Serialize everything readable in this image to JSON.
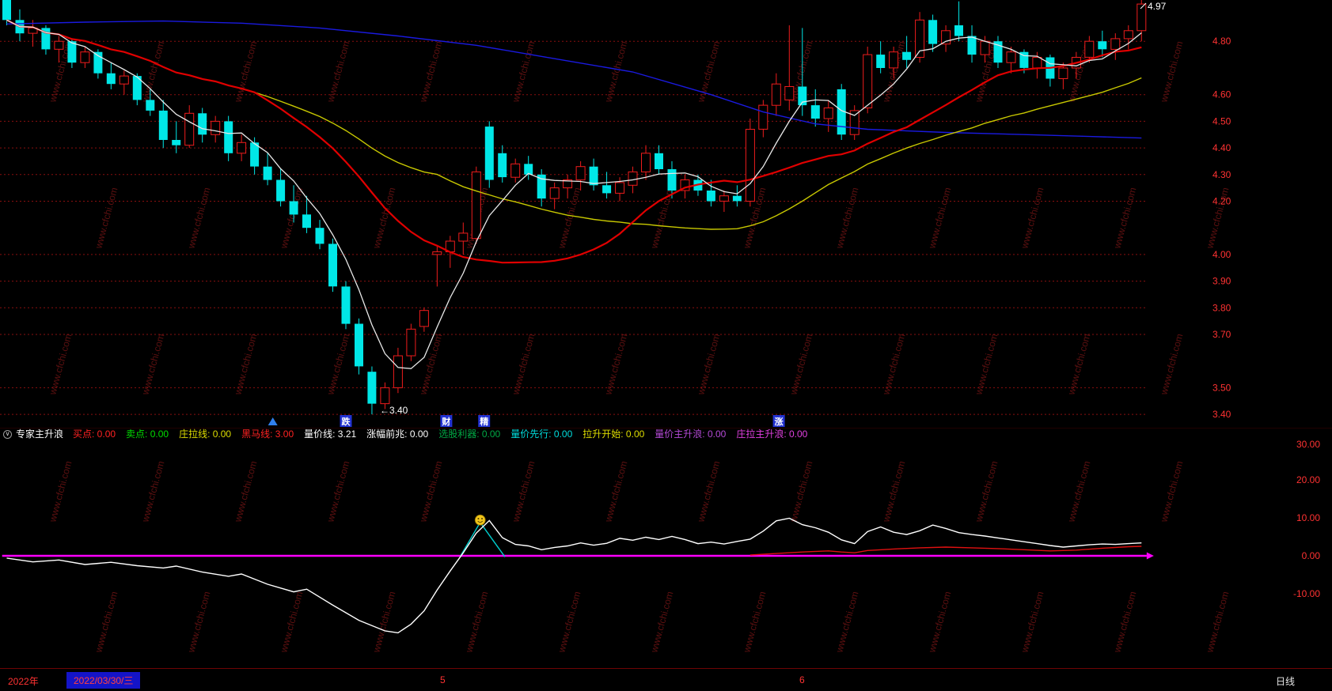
{
  "app": {
    "watermark": "www.cfchi.com"
  },
  "indicator_header": {
    "icon_glyph": "∨",
    "title": "专家主升浪",
    "items": [
      {
        "label": "买点",
        "value": "0.00",
        "color": "#ff2222"
      },
      {
        "label": "卖点",
        "value": "0.00",
        "color": "#00dd00"
      },
      {
        "label": "庄拉线",
        "value": "0.00",
        "color": "#dddd00"
      },
      {
        "label": "黑马线",
        "value": "3.00",
        "color": "#ff2222"
      },
      {
        "label": "量价线",
        "value": "3.21",
        "color": "#ffffff"
      },
      {
        "label": "涨幅前兆",
        "value": "0.00",
        "color": "#ffffff"
      },
      {
        "label": "选股利器",
        "value": "0.00",
        "color": "#00a844"
      },
      {
        "label": "量价先行",
        "value": "0.00",
        "color": "#00dddd"
      },
      {
        "label": "拉升开始",
        "value": "0.00",
        "color": "#dddd00"
      },
      {
        "label": "量价主升浪",
        "value": "0.00",
        "color": "#b44ad6"
      },
      {
        "label": "庄拉主升浪",
        "value": "0.00",
        "color": "#e040e0"
      }
    ]
  },
  "status_bar": {
    "year": "2022年",
    "date": "2022/03/30/三",
    "month_ticks": [
      {
        "label": "5",
        "x": 556
      },
      {
        "label": "6",
        "x": 1010
      }
    ],
    "period": "日线"
  },
  "chart_data": [
    {
      "type": "candlestick",
      "title": "daily-price-chart",
      "y_range": [
        3.35,
        4.955
      ],
      "price_axis_labels": [
        4.8,
        4.6,
        4.5,
        4.4,
        4.3,
        4.2,
        4.0,
        3.9,
        3.8,
        3.7,
        3.5,
        3.4
      ],
      "last_price_label": "4.97",
      "low_annotation": "←3.40",
      "colors": {
        "up": "#ee1c1c",
        "down": "#00e7e7"
      },
      "candles": [
        [
          4.96,
          4.97,
          4.86,
          4.88
        ],
        [
          4.88,
          4.92,
          4.8,
          4.83
        ],
        [
          4.83,
          4.88,
          4.78,
          4.85
        ],
        [
          4.85,
          4.86,
          4.75,
          4.77
        ],
        [
          4.77,
          4.82,
          4.72,
          4.8
        ],
        [
          4.8,
          4.81,
          4.7,
          4.72
        ],
        [
          4.72,
          4.78,
          4.7,
          4.76
        ],
        [
          4.76,
          4.77,
          4.66,
          4.68
        ],
        [
          4.68,
          4.72,
          4.62,
          4.64
        ],
        [
          4.64,
          4.69,
          4.6,
          4.67
        ],
        [
          4.67,
          4.68,
          4.56,
          4.58
        ],
        [
          4.58,
          4.62,
          4.52,
          4.54
        ],
        [
          4.54,
          4.58,
          4.4,
          4.43
        ],
        [
          4.43,
          4.5,
          4.38,
          4.41
        ],
        [
          4.41,
          4.56,
          4.4,
          4.53
        ],
        [
          4.53,
          4.55,
          4.42,
          4.45
        ],
        [
          4.45,
          4.52,
          4.42,
          4.5
        ],
        [
          4.5,
          4.52,
          4.35,
          4.38
        ],
        [
          4.38,
          4.45,
          4.35,
          4.42
        ],
        [
          4.42,
          4.44,
          4.3,
          4.33
        ],
        [
          4.33,
          4.38,
          4.26,
          4.28
        ],
        [
          4.28,
          4.32,
          4.18,
          4.2
        ],
        [
          4.2,
          4.26,
          4.12,
          4.15
        ],
        [
          4.15,
          4.22,
          4.08,
          4.1
        ],
        [
          4.1,
          4.13,
          4.02,
          4.04
        ],
        [
          4.04,
          4.06,
          3.86,
          3.88
        ],
        [
          3.88,
          3.9,
          3.72,
          3.74
        ],
        [
          3.74,
          3.76,
          3.55,
          3.58
        ],
        [
          3.56,
          3.58,
          3.4,
          3.44
        ],
        [
          3.44,
          3.52,
          3.42,
          3.5
        ],
        [
          3.5,
          3.65,
          3.48,
          3.62
        ],
        [
          3.62,
          3.74,
          3.6,
          3.72
        ],
        [
          3.73,
          3.8,
          3.71,
          3.79
        ],
        [
          4.0,
          4.03,
          3.88,
          4.01
        ],
        [
          4.01,
          4.07,
          3.95,
          4.05
        ],
        [
          4.05,
          4.12,
          4.0,
          4.08
        ],
        [
          4.06,
          4.33,
          4.04,
          4.31
        ],
        [
          4.48,
          4.5,
          4.25,
          4.28
        ],
        [
          4.38,
          4.41,
          4.27,
          4.29
        ],
        [
          4.29,
          4.36,
          4.27,
          4.34
        ],
        [
          4.34,
          4.37,
          4.28,
          4.3
        ],
        [
          4.3,
          4.32,
          4.18,
          4.21
        ],
        [
          4.21,
          4.27,
          4.17,
          4.25
        ],
        [
          4.25,
          4.3,
          4.21,
          4.28
        ],
        [
          4.28,
          4.35,
          4.24,
          4.33
        ],
        [
          4.33,
          4.36,
          4.24,
          4.26
        ],
        [
          4.26,
          4.31,
          4.21,
          4.23
        ],
        [
          4.23,
          4.29,
          4.2,
          4.27
        ],
        [
          4.26,
          4.33,
          4.23,
          4.31
        ],
        [
          4.31,
          4.41,
          4.28,
          4.38
        ],
        [
          4.38,
          4.41,
          4.3,
          4.32
        ],
        [
          4.32,
          4.35,
          4.21,
          4.24
        ],
        [
          4.24,
          4.3,
          4.21,
          4.28
        ],
        [
          4.28,
          4.3,
          4.22,
          4.24
        ],
        [
          4.24,
          4.28,
          4.18,
          4.2
        ],
        [
          4.2,
          4.24,
          4.16,
          4.22
        ],
        [
          4.22,
          4.26,
          4.18,
          4.2
        ],
        [
          4.2,
          4.51,
          4.18,
          4.47
        ],
        [
          4.47,
          4.58,
          4.44,
          4.56
        ],
        [
          4.56,
          4.68,
          4.52,
          4.64
        ],
        [
          4.58,
          4.86,
          4.54,
          4.63
        ],
        [
          4.63,
          4.85,
          4.52,
          4.56
        ],
        [
          4.56,
          4.62,
          4.48,
          4.51
        ],
        [
          4.51,
          4.58,
          4.46,
          4.55
        ],
        [
          4.62,
          4.64,
          4.43,
          4.45
        ],
        [
          4.45,
          4.56,
          4.43,
          4.54
        ],
        [
          4.55,
          4.78,
          4.53,
          4.75
        ],
        [
          4.75,
          4.8,
          4.68,
          4.7
        ],
        [
          4.7,
          4.78,
          4.66,
          4.76
        ],
        [
          4.76,
          4.82,
          4.7,
          4.73
        ],
        [
          4.74,
          4.91,
          4.72,
          4.88
        ],
        [
          4.88,
          4.9,
          4.76,
          4.79
        ],
        [
          4.79,
          4.86,
          4.76,
          4.84
        ],
        [
          4.86,
          4.95,
          4.8,
          4.82
        ],
        [
          4.82,
          4.86,
          4.72,
          4.75
        ],
        [
          4.75,
          4.82,
          4.72,
          4.8
        ],
        [
          4.8,
          4.82,
          4.7,
          4.72
        ],
        [
          4.72,
          4.78,
          4.68,
          4.76
        ],
        [
          4.76,
          4.77,
          4.68,
          4.7
        ],
        [
          4.7,
          4.76,
          4.66,
          4.74
        ],
        [
          4.74,
          4.75,
          4.63,
          4.66
        ],
        [
          4.66,
          4.72,
          4.62,
          4.7
        ],
        [
          4.7,
          4.76,
          4.66,
          4.74
        ],
        [
          4.74,
          4.82,
          4.72,
          4.8
        ],
        [
          4.8,
          4.84,
          4.74,
          4.77
        ],
        [
          4.77,
          4.83,
          4.73,
          4.81
        ],
        [
          4.81,
          4.86,
          4.77,
          4.84
        ],
        [
          4.84,
          4.97,
          4.8,
          4.94
        ]
      ],
      "ma_lines": [
        {
          "name": "ma-long-blue",
          "color": "#1a1ae0",
          "width": 1.4,
          "points": [
            [
              0,
              4.865
            ],
            [
              6,
              4.872
            ],
            [
              12,
              4.876
            ],
            [
              18,
              4.868
            ],
            [
              24,
              4.85
            ],
            [
              30,
              4.82
            ],
            [
              36,
              4.785
            ],
            [
              42,
              4.735
            ],
            [
              48,
              4.685
            ],
            [
              54,
              4.6
            ],
            [
              58,
              4.535
            ],
            [
              62,
              4.49
            ],
            [
              66,
              4.47
            ],
            [
              72,
              4.458
            ],
            [
              78,
              4.45
            ],
            [
              83,
              4.443
            ],
            [
              87,
              4.437
            ]
          ]
        },
        {
          "name": "ma-yellow",
          "color": "#c8c800",
          "width": 1.4,
          "window": 34
        },
        {
          "name": "ma-red",
          "color": "#e00000",
          "width": 2.2,
          "window": 20
        },
        {
          "name": "ma-white",
          "color": "#e8e8e8",
          "width": 1.3,
          "window": 5
        }
      ],
      "signals": [
        {
          "bar": 26,
          "label": "跌",
          "bg": "#2232d2"
        },
        {
          "bar": 33.7,
          "label": "财",
          "bg": "#2232d2"
        },
        {
          "bar": 36.6,
          "label": "精",
          "bg": "#2232d2"
        },
        {
          "bar": 59.2,
          "label": "涨",
          "bg": "#2232d2"
        }
      ],
      "up_triangle_bar": 20.4,
      "up_triangle_color": "#2f80ed"
    },
    {
      "type": "line",
      "title": "expert-main-rising-wave-indicator",
      "y_axis_labels": [
        30,
        20,
        10,
        0,
        -10
      ],
      "series": [
        {
          "name": "zero-line",
          "color": "#ff00ff",
          "width": 2.5,
          "arrow_end": true,
          "points": [
            [
              -0.35,
              0
            ],
            [
              87.4,
              0
            ]
          ]
        },
        {
          "name": "signal-spike",
          "color": "#00cccc",
          "width": 1.4,
          "points": [
            [
              34.8,
              0
            ],
            [
              36.3,
              8.8
            ],
            [
              38.2,
              -0.3
            ]
          ]
        },
        {
          "name": "secondary-line",
          "color": "#e01010",
          "width": 1.4,
          "points": [
            [
              57,
              0.2
            ],
            [
              59,
              0.6
            ],
            [
              61,
              1.0
            ],
            [
              63,
              1.3
            ],
            [
              64,
              1.0
            ],
            [
              65,
              0.8
            ],
            [
              66,
              1.4
            ],
            [
              68,
              1.8
            ],
            [
              70,
              2.1
            ],
            [
              72,
              2.3
            ],
            [
              74,
              2.1
            ],
            [
              76,
              1.9
            ],
            [
              78,
              1.6
            ],
            [
              80,
              1.3
            ],
            [
              82,
              1.5
            ],
            [
              84,
              2.0
            ],
            [
              86,
              2.4
            ],
            [
              87,
              2.5
            ]
          ]
        },
        {
          "name": "main-line",
          "color": "#ffffff",
          "width": 1.4,
          "points": [
            [
              0,
              -0.6
            ],
            [
              2,
              -1.6
            ],
            [
              4,
              -1.1
            ],
            [
              6,
              -2.3
            ],
            [
              8,
              -1.7
            ],
            [
              10,
              -2.6
            ],
            [
              12,
              -3.2
            ],
            [
              13,
              -2.7
            ],
            [
              15,
              -4.3
            ],
            [
              17,
              -5.4
            ],
            [
              18,
              -4.8
            ],
            [
              20,
              -7.5
            ],
            [
              22,
              -9.5
            ],
            [
              23,
              -8.8
            ],
            [
              25,
              -13
            ],
            [
              27,
              -17
            ],
            [
              29,
              -19.8
            ],
            [
              30,
              -20.3
            ],
            [
              31,
              -18
            ],
            [
              32,
              -14.5
            ],
            [
              33,
              -9
            ],
            [
              34,
              -4
            ],
            [
              35,
              0.8
            ],
            [
              36,
              6
            ],
            [
              37,
              9.3
            ],
            [
              38,
              4.8
            ],
            [
              39,
              3
            ],
            [
              40,
              2.6
            ],
            [
              41,
              1.6
            ],
            [
              42,
              2.2
            ],
            [
              43,
              2.6
            ],
            [
              44,
              3.4
            ],
            [
              45,
              2.8
            ],
            [
              46,
              3.3
            ],
            [
              47,
              4.6
            ],
            [
              48,
              4.1
            ],
            [
              49,
              4.9
            ],
            [
              50,
              4.3
            ],
            [
              51,
              5.1
            ],
            [
              52,
              4.3
            ],
            [
              53,
              3.2
            ],
            [
              54,
              3.6
            ],
            [
              55,
              3.1
            ],
            [
              56,
              3.8
            ],
            [
              57,
              4.4
            ],
            [
              58,
              6.5
            ],
            [
              59,
              9.2
            ],
            [
              60,
              9.9
            ],
            [
              61,
              8.2
            ],
            [
              62,
              7.4
            ],
            [
              63,
              6.2
            ],
            [
              64,
              4.2
            ],
            [
              65,
              3.2
            ],
            [
              66,
              6.4
            ],
            [
              67,
              7.6
            ],
            [
              68,
              6.2
            ],
            [
              69,
              5.6
            ],
            [
              70,
              6.6
            ],
            [
              71,
              8.1
            ],
            [
              72,
              7.2
            ],
            [
              73,
              6.1
            ],
            [
              74,
              5.6
            ],
            [
              75,
              5.2
            ],
            [
              76,
              4.7
            ],
            [
              77,
              4.2
            ],
            [
              78,
              3.7
            ],
            [
              79,
              3.2
            ],
            [
              80,
              2.7
            ],
            [
              81,
              2.3
            ],
            [
              82,
              2.6
            ],
            [
              83,
              2.9
            ],
            [
              84,
              3.1
            ],
            [
              85,
              3.0
            ],
            [
              86,
              3.2
            ],
            [
              87,
              3.4
            ]
          ]
        }
      ],
      "marker": {
        "type": "smiley-face",
        "bar": 36.3,
        "value": 8.8,
        "color": "#f0c419"
      }
    }
  ]
}
